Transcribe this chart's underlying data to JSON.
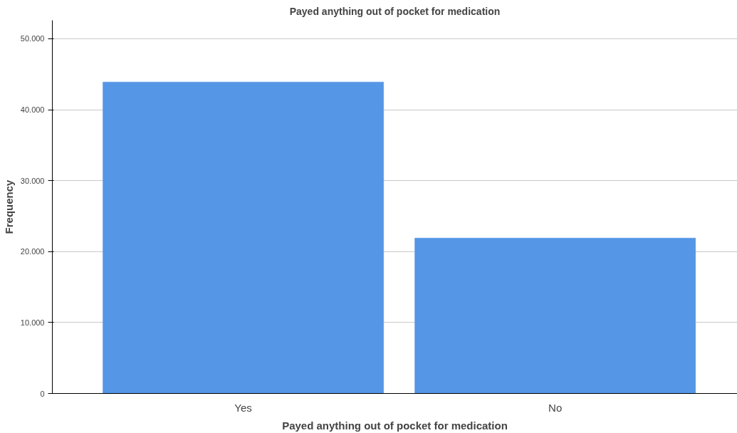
{
  "chart_data": {
    "type": "bar",
    "title": "Payed anything out of pocket for medication",
    "xlabel": "Payed anything out of pocket for medication",
    "ylabel": "Frequency",
    "categories": [
      "Yes",
      "No"
    ],
    "values": [
      43900,
      21900
    ],
    "color": "#5596e6",
    "ylim": [
      0,
      52600
    ],
    "yticks": [
      0,
      {
        "value": 10000,
        "label": "10.000"
      },
      {
        "value": 20000,
        "label": "20.000"
      },
      {
        "value": 30000,
        "label": "30.000"
      },
      {
        "value": 40000,
        "label": "40.000"
      },
      {
        "value": 50000,
        "label": "50.000"
      }
    ],
    "grid": "y"
  }
}
